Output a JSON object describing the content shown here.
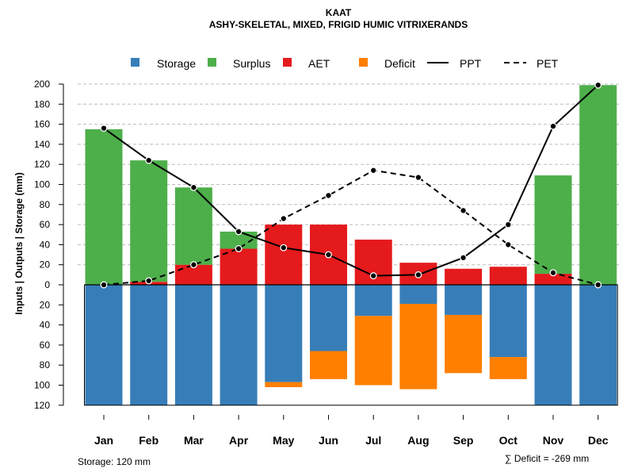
{
  "chart_data": {
    "type": "bar",
    "title": "KAAT",
    "subtitle": "ASHY-SKELETAL, MIXED, FRIGID HUMIC VITRIXERANDS",
    "ylabel": "Inputs | Outputs | Storage    (mm)",
    "ylim": [
      -120,
      200
    ],
    "y_ticks_up": [
      "0",
      "20",
      "40",
      "60",
      "80",
      "100",
      "120",
      "140",
      "160",
      "180",
      "200"
    ],
    "y_ticks_down": [
      "20",
      "40",
      "60",
      "80",
      "100",
      "120"
    ],
    "categories": [
      "Jan",
      "Feb",
      "Mar",
      "Apr",
      "May",
      "Jun",
      "Jul",
      "Aug",
      "Sep",
      "Oct",
      "Nov",
      "Dec"
    ],
    "series": [
      {
        "name": "Storage",
        "color": "#377EB8",
        "values": [
          120,
          120,
          120,
          120,
          97,
          66,
          31,
          19,
          30,
          72,
          120,
          120
        ]
      },
      {
        "name": "Surplus",
        "color": "#4DAF4A",
        "values": [
          155,
          121,
          77,
          17,
          0,
          0,
          0,
          0,
          0,
          0,
          98,
          199
        ]
      },
      {
        "name": "AET",
        "color": "#E41A1C",
        "values": [
          0,
          3,
          20,
          36,
          60,
          60,
          45,
          22,
          16,
          18,
          11,
          0
        ]
      },
      {
        "name": "Deficit",
        "color": "#FF7F00",
        "values": [
          0,
          0,
          0,
          0,
          5,
          28,
          69,
          85,
          58,
          22,
          0,
          0
        ]
      },
      {
        "name": "PPT",
        "style": "solid",
        "values": [
          156,
          124,
          97,
          53,
          37,
          30,
          9,
          10,
          27,
          60,
          158,
          199
        ]
      },
      {
        "name": "PET",
        "style": "dashed",
        "values": [
          0,
          4,
          20,
          36,
          66,
          89,
          114,
          107,
          74,
          40,
          12,
          0
        ]
      }
    ],
    "legend": [
      "Storage",
      "Surplus",
      "AET",
      "Deficit",
      "PPT",
      "PET"
    ],
    "legend_position": "top",
    "grid": true
  },
  "footer": {
    "storage_note": "Storage: 120 mm",
    "deficit_note": "∑ Deficit = -269 mm"
  }
}
